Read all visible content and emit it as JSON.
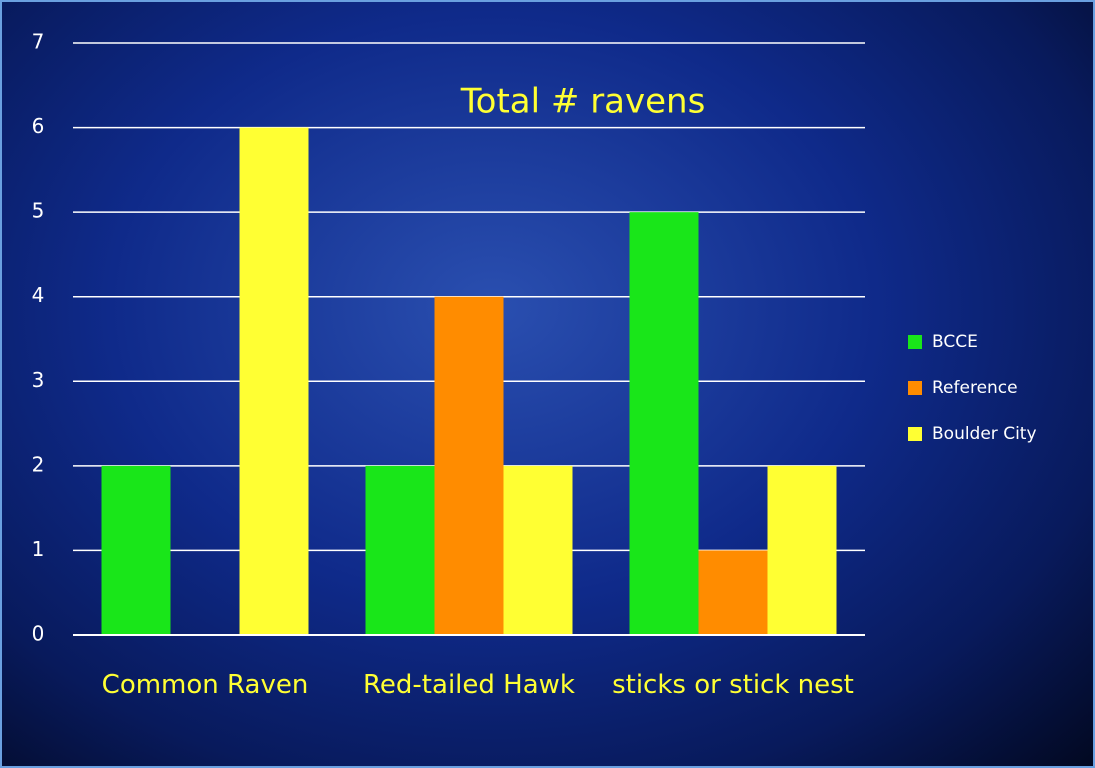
{
  "chart_data": {
    "type": "bar",
    "title": "Total # ravens",
    "categories": [
      "Common Raven",
      "Red-tailed Hawk",
      "sticks or stick nest"
    ],
    "series": [
      {
        "name": "BCCE",
        "color": "#19e619",
        "values": [
          2,
          2,
          5
        ]
      },
      {
        "name": "Reference",
        "color": "#ff8c00",
        "values": [
          0,
          4,
          1
        ]
      },
      {
        "name": "Boulder City",
        "color": "#ffff33",
        "values": [
          6,
          2,
          2
        ]
      }
    ],
    "ylim": [
      0,
      7
    ],
    "yticks": [
      0,
      1,
      2,
      3,
      4,
      5,
      6,
      7
    ],
    "grid": true,
    "legend": "right"
  }
}
